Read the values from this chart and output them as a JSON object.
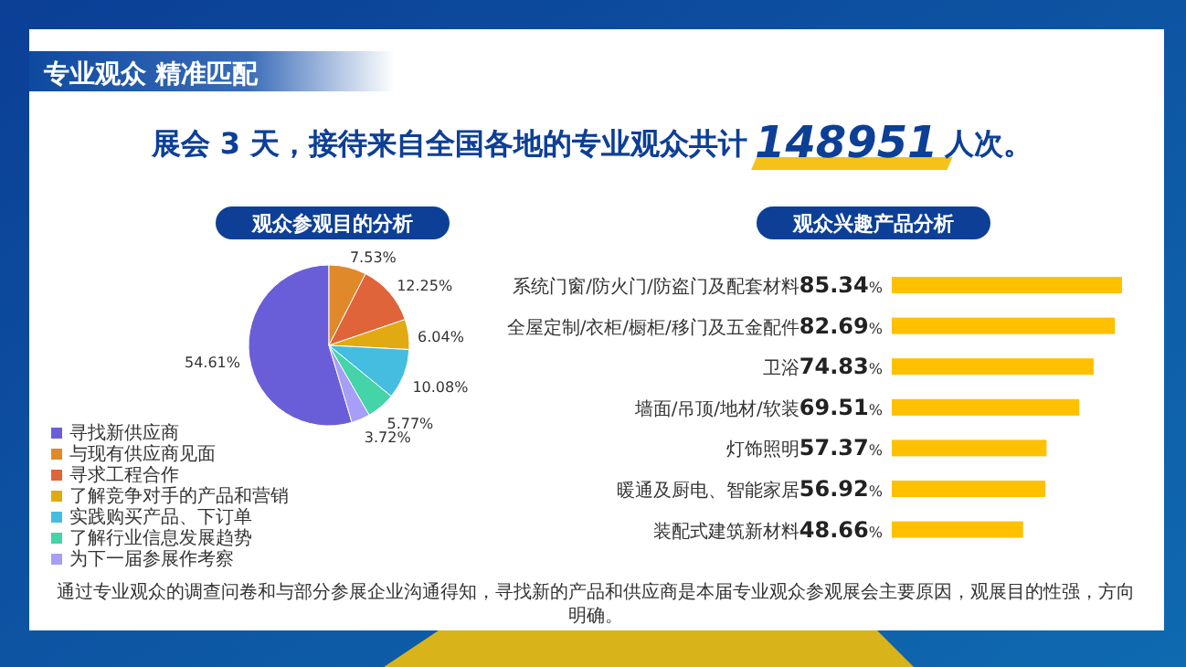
{
  "chart_data": [
    {
      "type": "other",
      "title": "专业观众 精准匹配",
      "subtitle": "展会 3 天，接待来自全国各地的专业观众共计 **148951** 人次。",
      "annotations": [
        "通过专业观众的调查问卷和与部分参展企业沟通得知，寻找新的产品和供应商是本届专业观众参观展会主要原因，观展目的性强，方向明确。"
      ]
    },
    {
      "type": "pie",
      "title": "观众参观目的分析",
      "categories": [
        "寻找新供应商",
        "与现有供应商见面",
        "寻求工程合作",
        "了解竞争对手的产品和营销",
        "实践购买产品、下订单",
        "了解行业信息发展趋势",
        "为下一届参展作考察"
      ],
      "values": [
        54.61,
        7.53,
        12.25,
        6.04,
        10.08,
        5.77,
        3.72
      ],
      "value_labels": [
        "54.61%",
        "7.53%",
        "12.25%",
        "6.04%",
        "10.08%",
        "5.77%",
        "3.72%"
      ],
      "colors": [
        "#6a5ed8",
        "#e0892a",
        "#e0643a",
        "#e2aa12",
        "#45bde0",
        "#45d3a8",
        "#a79ef5"
      ],
      "legend": "bottom left"
    },
    {
      "type": "bar",
      "orientation": "horizontal",
      "title": "观众兴趣产品分析",
      "categories": [
        "系统门窗/防火门/防盗门及配套材料",
        "全屋定制/衣柜/橱柜/移门及五金配件",
        "卫浴",
        "墙面/吊顶/地材/软装",
        "灯饰照明",
        "暖通及厨电、智能家居",
        "装配式建筑新材料"
      ],
      "values": [
        85.34,
        82.69,
        74.83,
        69.51,
        57.37,
        56.92,
        48.66
      ],
      "value_labels": [
        "85.34%",
        "82.69%",
        "74.83%",
        "69.51%",
        "57.37%",
        "56.92%",
        "48.66%"
      ],
      "color": "#ffc000"
    }
  ]
}
